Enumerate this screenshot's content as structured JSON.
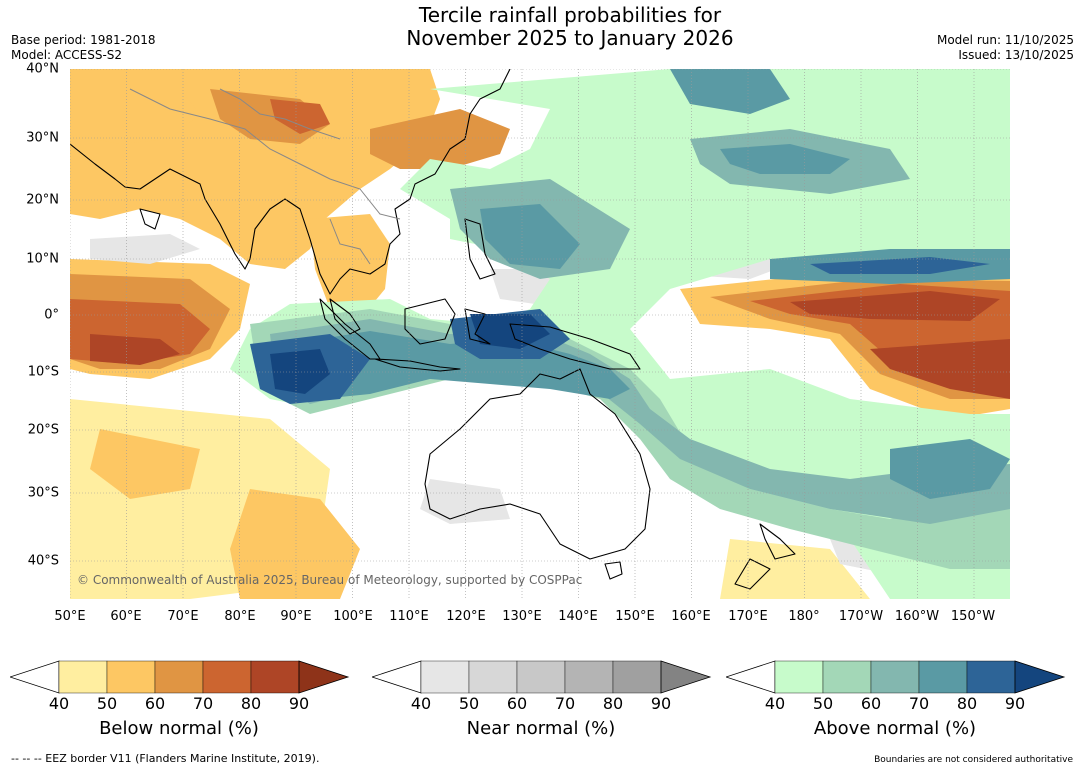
{
  "title_line1": "Tercile rainfall probabilities for",
  "title_line2": "November 2025 to January 2026",
  "base_period": "Base period: 1981-2018",
  "model": "Model: ACCESS-S2",
  "model_run": "Model run: 11/10/2025",
  "issued": "Issued: 13/10/2025",
  "copyright": "© Commonwealth of Australia 2025, Bureau of Meteorology, supported by COSPPac",
  "lat_labels": [
    "40°N",
    "30°N",
    "20°N",
    "10°N",
    "0°",
    "10°S",
    "20°S",
    "30°S",
    "40°S"
  ],
  "lon_labels": [
    "50°E",
    "60°E",
    "70°E",
    "80°E",
    "90°E",
    "100°E",
    "110°E",
    "120°E",
    "130°E",
    "140°E",
    "150°E",
    "160°E",
    "170°E",
    "180°",
    "170°W",
    "160°W",
    "150°W"
  ],
  "colorbars": [
    {
      "title": "Below normal (%)",
      "ticks": [
        "40",
        "50",
        "60",
        "70",
        "80",
        "90"
      ],
      "colors": [
        "#ffeea0",
        "#fdc763",
        "#e09543",
        "#cc6530",
        "#ae4526",
        "#8e3319"
      ]
    },
    {
      "title": "Near normal (%)",
      "ticks": [
        "40",
        "50",
        "60",
        "70",
        "80",
        "90"
      ],
      "colors": [
        "#e6e6e6",
        "#d7d7d7",
        "#c8c8c8",
        "#b4b4b4",
        "#a0a0a0",
        "#838383"
      ]
    },
    {
      "title": "Above normal (%)",
      "ticks": [
        "40",
        "50",
        "60",
        "70",
        "80",
        "90"
      ],
      "colors": [
        "#c7fbcb",
        "#a3d7b7",
        "#83b7af",
        "#5a9aa4",
        "#2d6497",
        "#14457e"
      ]
    }
  ],
  "footer_left": "--  --  -- EEZ border V11 (Flanders Marine Institute, 2019).",
  "footer_right": "Boundaries are not considered authoritative",
  "colors": {
    "ocean": "#ffffff",
    "gridline": "#9a9a9a",
    "coastline": "#000000",
    "border": "#888888"
  }
}
